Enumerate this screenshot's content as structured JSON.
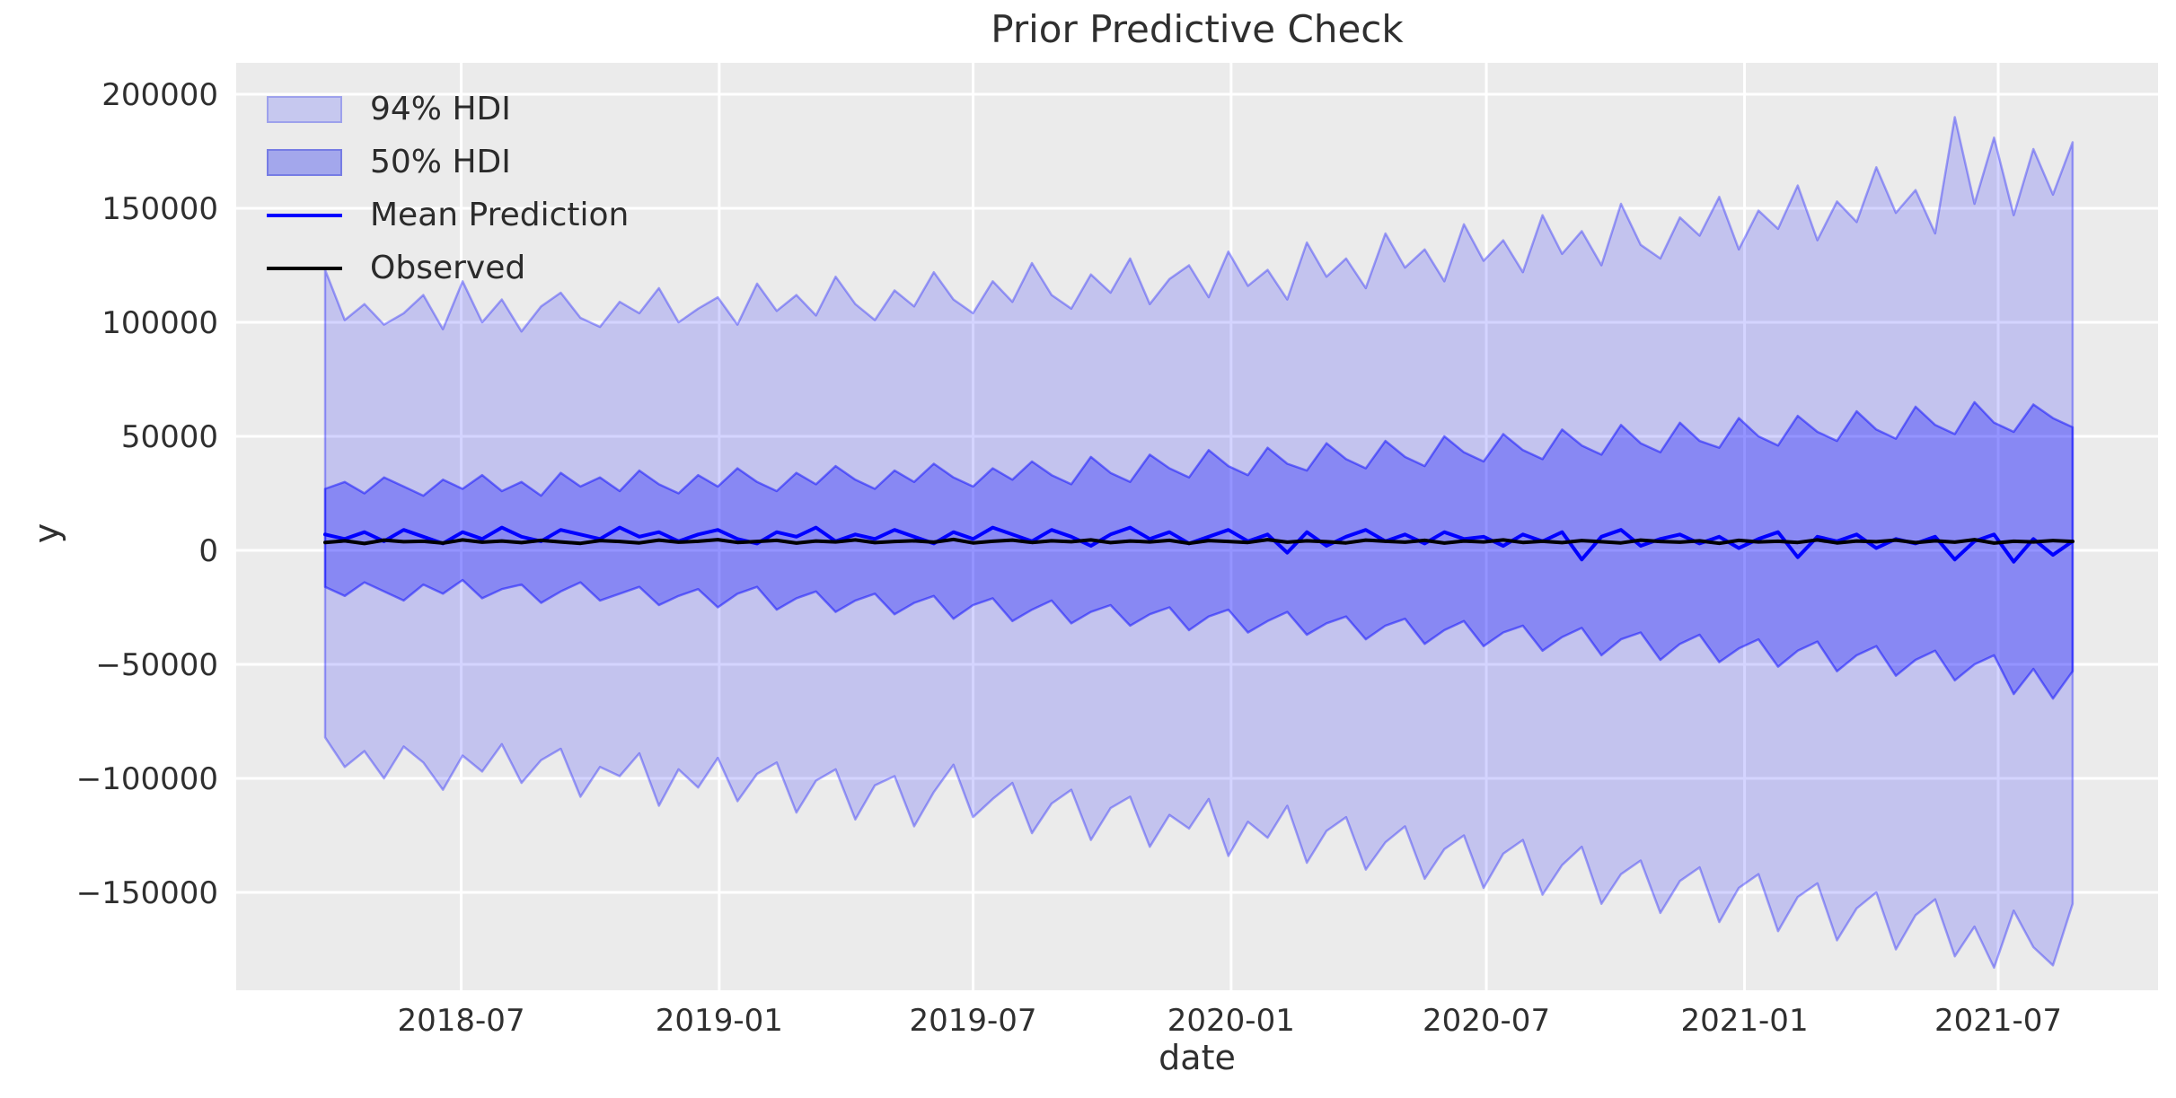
{
  "header": {
    "title": "Prior Predictive Check"
  },
  "axes": {
    "xlabel": "date",
    "ylabel": "y"
  },
  "legend": {
    "items": [
      {
        "label": "94% HDI",
        "swatch": "patch-94"
      },
      {
        "label": "50% HDI",
        "swatch": "patch-50"
      },
      {
        "label": "Mean Prediction",
        "swatch": "line-mean"
      },
      {
        "label": "Observed",
        "swatch": "line-observed"
      }
    ]
  },
  "colors": {
    "figure_bg": "#ffffff",
    "axes_bg": "#ebebeb",
    "grid": "#ffffff",
    "hdi94_fill": "rgba(0,0,255,0.17)",
    "hdi94_edge": "rgba(0,0,255,0.33)",
    "hdi50_fill": "rgba(0,0,255,0.30)",
    "hdi50_edge": "rgba(0,0,255,0.46)",
    "legend_patch94_fill": "#c6c8ef",
    "legend_patch94_edge": "#9da1ec",
    "legend_patch50_fill": "#a3a7ec",
    "legend_patch50_edge": "#767ce4",
    "mean_line": "#0000ff",
    "observed_line": "#000000",
    "tick_text": "#2f2f2f"
  },
  "chart_data": {
    "type": "area",
    "title": "Prior Predictive Check",
    "xlabel": "date",
    "ylabel": "y",
    "grid": true,
    "legend_position": "upper left",
    "x_start_date": "2018-03-26",
    "x_step_days": 14,
    "n_points": 90,
    "ylim": [
      -192900,
      213800
    ],
    "xlim_index": [
      -4.53,
      93.35
    ],
    "y_ticks": [
      {
        "value": 200000,
        "label": "200000"
      },
      {
        "value": 150000,
        "label": "150000"
      },
      {
        "value": 100000,
        "label": "100000"
      },
      {
        "value": 50000,
        "label": "50000"
      },
      {
        "value": 0,
        "label": "0"
      },
      {
        "value": -50000,
        "label": "−50000"
      },
      {
        "value": -100000,
        "label": "−100000"
      },
      {
        "value": -150000,
        "label": "−150000"
      }
    ],
    "x_ticks": [
      {
        "index": 6.93,
        "label": "2018-07"
      },
      {
        "index": 20.07,
        "label": "2019-01"
      },
      {
        "index": 33.0,
        "label": "2019-07"
      },
      {
        "index": 46.14,
        "label": "2020-01"
      },
      {
        "index": 59.14,
        "label": "2020-07"
      },
      {
        "index": 72.29,
        "label": "2021-01"
      },
      {
        "index": 85.21,
        "label": "2021-07"
      }
    ],
    "series": [
      {
        "name": "94% HDI upper",
        "values": [
          123000,
          101000,
          108000,
          99000,
          104000,
          112000,
          97000,
          118000,
          100000,
          110000,
          96000,
          107000,
          113000,
          102000,
          98000,
          109000,
          104000,
          115000,
          100000,
          106000,
          111000,
          99000,
          117000,
          105000,
          112000,
          103000,
          120000,
          108000,
          101000,
          114000,
          107000,
          122000,
          110000,
          104000,
          118000,
          109000,
          126000,
          112000,
          106000,
          121000,
          113000,
          128000,
          108000,
          119000,
          125000,
          111000,
          131000,
          116000,
          123000,
          110000,
          135000,
          120000,
          128000,
          115000,
          139000,
          124000,
          132000,
          118000,
          143000,
          127000,
          136000,
          122000,
          147000,
          130000,
          140000,
          125000,
          152000,
          134000,
          128000,
          146000,
          138000,
          155000,
          132000,
          149000,
          141000,
          160000,
          136000,
          153000,
          144000,
          168000,
          148000,
          158000,
          139000,
          190000,
          152000,
          181000,
          147000,
          176000,
          156000,
          179000
        ]
      },
      {
        "name": "94% HDI lower",
        "values": [
          -82000,
          -95000,
          -88000,
          -100000,
          -86000,
          -93000,
          -105000,
          -90000,
          -97000,
          -85000,
          -102000,
          -92000,
          -87000,
          -108000,
          -95000,
          -99000,
          -89000,
          -112000,
          -96000,
          -104000,
          -91000,
          -110000,
          -98000,
          -93000,
          -115000,
          -101000,
          -96000,
          -118000,
          -103000,
          -99000,
          -121000,
          -106000,
          -94000,
          -117000,
          -109000,
          -102000,
          -124000,
          -111000,
          -105000,
          -127000,
          -113000,
          -108000,
          -130000,
          -116000,
          -122000,
          -109000,
          -134000,
          -119000,
          -126000,
          -112000,
          -137000,
          -123000,
          -117000,
          -140000,
          -128000,
          -121000,
          -144000,
          -131000,
          -125000,
          -148000,
          -133000,
          -127000,
          -151000,
          -138000,
          -130000,
          -155000,
          -142000,
          -136000,
          -159000,
          -145000,
          -139000,
          -163000,
          -148000,
          -142000,
          -167000,
          -152000,
          -146000,
          -171000,
          -157000,
          -150000,
          -175000,
          -160000,
          -153000,
          -178000,
          -165000,
          -183000,
          -158000,
          -174000,
          -182000,
          -155000
        ]
      },
      {
        "name": "50% HDI upper",
        "values": [
          27000,
          30000,
          25000,
          32000,
          28000,
          24000,
          31000,
          27000,
          33000,
          26000,
          30000,
          24000,
          34000,
          28000,
          32000,
          26000,
          35000,
          29000,
          25000,
          33000,
          28000,
          36000,
          30000,
          26000,
          34000,
          29000,
          37000,
          31000,
          27000,
          35000,
          30000,
          38000,
          32000,
          28000,
          36000,
          31000,
          39000,
          33000,
          29000,
          41000,
          34000,
          30000,
          42000,
          36000,
          32000,
          44000,
          37000,
          33000,
          45000,
          38000,
          35000,
          47000,
          40000,
          36000,
          48000,
          41000,
          37000,
          50000,
          43000,
          39000,
          51000,
          44000,
          40000,
          53000,
          46000,
          42000,
          55000,
          47000,
          43000,
          56000,
          48000,
          45000,
          58000,
          50000,
          46000,
          59000,
          52000,
          48000,
          61000,
          53000,
          49000,
          63000,
          55000,
          51000,
          65000,
          56000,
          52000,
          64000,
          58000,
          54000
        ]
      },
      {
        "name": "50% HDI lower",
        "values": [
          -16000,
          -20000,
          -14000,
          -18000,
          -22000,
          -15000,
          -19000,
          -13000,
          -21000,
          -17000,
          -15000,
          -23000,
          -18000,
          -14000,
          -22000,
          -19000,
          -16000,
          -24000,
          -20000,
          -17000,
          -25000,
          -19000,
          -16000,
          -26000,
          -21000,
          -18000,
          -27000,
          -22000,
          -19000,
          -28000,
          -23000,
          -20000,
          -30000,
          -24000,
          -21000,
          -31000,
          -26000,
          -22000,
          -32000,
          -27000,
          -24000,
          -33000,
          -28000,
          -25000,
          -35000,
          -29000,
          -26000,
          -36000,
          -31000,
          -27000,
          -37000,
          -32000,
          -29000,
          -39000,
          -33000,
          -30000,
          -41000,
          -35000,
          -31000,
          -42000,
          -36000,
          -33000,
          -44000,
          -38000,
          -34000,
          -46000,
          -39000,
          -36000,
          -48000,
          -41000,
          -37000,
          -49000,
          -43000,
          -39000,
          -51000,
          -44000,
          -40000,
          -53000,
          -46000,
          -42000,
          -55000,
          -48000,
          -44000,
          -57000,
          -50000,
          -46000,
          -63000,
          -52000,
          -65000,
          -53000
        ]
      },
      {
        "name": "Mean Prediction",
        "values": [
          7000,
          5000,
          8000,
          4000,
          9000,
          6000,
          3000,
          8000,
          5000,
          10000,
          6000,
          4000,
          9000,
          7000,
          5000,
          10000,
          6000,
          8000,
          4000,
          7000,
          9000,
          5000,
          3000,
          8000,
          6000,
          10000,
          4000,
          7000,
          5000,
          9000,
          6000,
          3000,
          8000,
          5000,
          10000,
          7000,
          4000,
          9000,
          6000,
          2000,
          7000,
          10000,
          5000,
          8000,
          3000,
          6000,
          9000,
          4000,
          7000,
          -1000,
          8000,
          2000,
          6000,
          9000,
          4000,
          7000,
          3000,
          8000,
          5000,
          6000,
          2000,
          7000,
          4000,
          8000,
          -4000,
          6000,
          9000,
          2000,
          5000,
          7000,
          3000,
          6000,
          1000,
          5000,
          8000,
          -3000,
          6000,
          4000,
          7000,
          1000,
          5000,
          3000,
          6000,
          -4000,
          4000,
          7000,
          -5000,
          5000,
          -2000,
          4000
        ]
      },
      {
        "name": "Observed",
        "values": [
          3500,
          4200,
          3000,
          4500,
          3800,
          4000,
          3200,
          4600,
          3600,
          4100,
          3400,
          4400,
          3700,
          3100,
          4300,
          3900,
          3300,
          4500,
          3600,
          4000,
          4700,
          3500,
          3900,
          4400,
          3200,
          4100,
          3700,
          4600,
          3400,
          3900,
          4200,
          3600,
          4800,
          3300,
          4000,
          4500,
          3500,
          4200,
          3800,
          4600,
          3400,
          4100,
          3700,
          4400,
          3100,
          4300,
          3900,
          3500,
          4700,
          3600,
          4200,
          3800,
          3300,
          4500,
          4000,
          3600,
          4400,
          3200,
          4100,
          3700,
          4600,
          3500,
          4000,
          3400,
          4300,
          3800,
          3300,
          4500,
          3900,
          3600,
          4200,
          3100,
          4400,
          3700,
          4000,
          3500,
          4600,
          3300,
          4100,
          3800,
          4500,
          3400,
          4200,
          3600,
          4700,
          3200,
          4000,
          3700,
          4300,
          3900
        ]
      }
    ]
  }
}
